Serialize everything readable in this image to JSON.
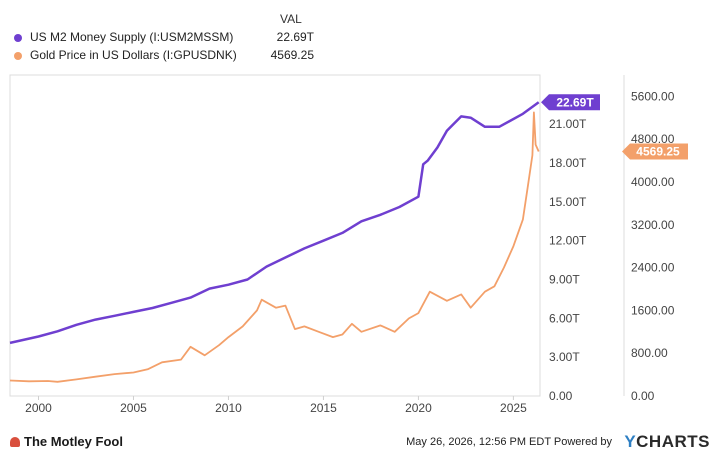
{
  "legend": {
    "header": "VAL",
    "items": [
      {
        "label": "US M2 Money Supply (I:USM2MSSM)",
        "value": "22.69T",
        "color": "#6f3fd0"
      },
      {
        "label": "Gold Price in US Dollars (I:GPUSDNK)",
        "value": "4569.25",
        "color": "#f3a06a"
      }
    ]
  },
  "chart_data": {
    "type": "line",
    "x_ticks": [
      "2000",
      "2005",
      "2010",
      "2015",
      "2020",
      "2025"
    ],
    "y_left": {
      "ticks": [
        "0.00",
        "3.00T",
        "6.00T",
        "9.00T",
        "12.00T",
        "15.00T",
        "18.00T",
        "21.00T"
      ],
      "range": [
        0,
        24.8
      ]
    },
    "y_right": {
      "ticks": [
        "0.00",
        "800.00",
        "1600.00",
        "2400.00",
        "3200.00",
        "4000.00",
        "4800.00",
        "5600.00"
      ],
      "range": [
        0,
        6000
      ]
    },
    "series": [
      {
        "name": "US M2 Money Supply (I:USM2MSSM)",
        "axis": "left",
        "color": "#6f3fd0",
        "end_label": "22.69T",
        "points": [
          [
            1998.5,
            4.1
          ],
          [
            2000.0,
            4.6
          ],
          [
            2001.0,
            5.0
          ],
          [
            2002.0,
            5.5
          ],
          [
            2003.0,
            5.9
          ],
          [
            2004.0,
            6.2
          ],
          [
            2005.0,
            6.5
          ],
          [
            2006.0,
            6.8
          ],
          [
            2007.0,
            7.2
          ],
          [
            2008.0,
            7.6
          ],
          [
            2009.0,
            8.3
          ],
          [
            2010.0,
            8.6
          ],
          [
            2011.0,
            9.0
          ],
          [
            2012.0,
            10.0
          ],
          [
            2013.0,
            10.7
          ],
          [
            2014.0,
            11.4
          ],
          [
            2015.0,
            12.0
          ],
          [
            2016.0,
            12.6
          ],
          [
            2017.0,
            13.5
          ],
          [
            2018.0,
            14.0
          ],
          [
            2019.0,
            14.6
          ],
          [
            2020.0,
            15.4
          ],
          [
            2020.25,
            17.9
          ],
          [
            2020.5,
            18.2
          ],
          [
            2021.0,
            19.2
          ],
          [
            2021.5,
            20.5
          ],
          [
            2022.25,
            21.6
          ],
          [
            2022.75,
            21.5
          ],
          [
            2023.5,
            20.8
          ],
          [
            2024.25,
            20.8
          ],
          [
            2024.75,
            21.2
          ],
          [
            2025.5,
            21.8
          ],
          [
            2026.33,
            22.69
          ]
        ]
      },
      {
        "name": "Gold Price in US Dollars (I:GPUSDNK)",
        "axis": "right",
        "color": "#f3a06a",
        "end_label": "4569.25",
        "points": [
          [
            1998.5,
            290
          ],
          [
            1999.5,
            275
          ],
          [
            2000.5,
            280
          ],
          [
            2001.0,
            265
          ],
          [
            2002.0,
            310
          ],
          [
            2003.0,
            360
          ],
          [
            2004.0,
            410
          ],
          [
            2005.0,
            440
          ],
          [
            2005.75,
            500
          ],
          [
            2006.5,
            630
          ],
          [
            2007.5,
            680
          ],
          [
            2008.0,
            920
          ],
          [
            2008.75,
            760
          ],
          [
            2009.5,
            950
          ],
          [
            2010.0,
            1100
          ],
          [
            2010.75,
            1300
          ],
          [
            2011.5,
            1600
          ],
          [
            2011.75,
            1800
          ],
          [
            2012.5,
            1650
          ],
          [
            2013.0,
            1690
          ],
          [
            2013.5,
            1250
          ],
          [
            2014.0,
            1300
          ],
          [
            2014.75,
            1200
          ],
          [
            2015.5,
            1100
          ],
          [
            2016.0,
            1150
          ],
          [
            2016.5,
            1350
          ],
          [
            2017.0,
            1200
          ],
          [
            2018.0,
            1320
          ],
          [
            2018.75,
            1200
          ],
          [
            2019.5,
            1450
          ],
          [
            2020.0,
            1550
          ],
          [
            2020.6,
            1950
          ],
          [
            2021.5,
            1780
          ],
          [
            2022.25,
            1900
          ],
          [
            2022.75,
            1650
          ],
          [
            2023.5,
            1950
          ],
          [
            2024.0,
            2050
          ],
          [
            2024.5,
            2400
          ],
          [
            2025.0,
            2800
          ],
          [
            2025.5,
            3300
          ],
          [
            2025.75,
            3900
          ],
          [
            2026.0,
            4500
          ],
          [
            2026.08,
            5300
          ],
          [
            2026.17,
            4700
          ],
          [
            2026.33,
            4569.25
          ]
        ]
      }
    ]
  },
  "footer": {
    "brand_left": "The Motley Fool",
    "timestamp": "May 26, 2026, 12:56 PM EDT Powered by",
    "brand_right_y": "Y",
    "brand_right_rest": "CHARTS"
  }
}
